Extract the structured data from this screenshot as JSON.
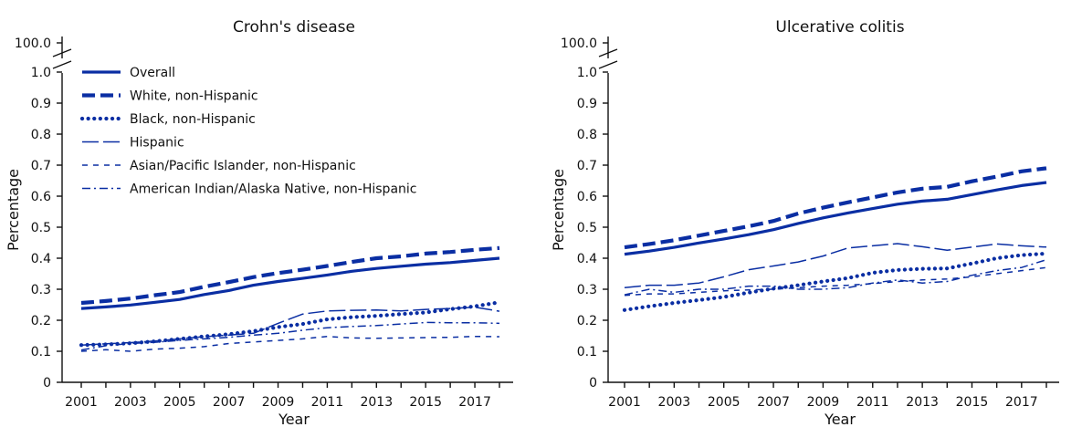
{
  "chart_data": [
    {
      "type": "line",
      "title": "Crohn's disease",
      "xlabel": "Year",
      "ylabel": "Percentage",
      "x": [
        2001,
        2002,
        2003,
        2004,
        2005,
        2006,
        2007,
        2008,
        2009,
        2010,
        2011,
        2012,
        2013,
        2014,
        2015,
        2016,
        2017,
        2018
      ],
      "x_ticks": [
        "2001",
        "2003",
        "2005",
        "2007",
        "2009",
        "2011",
        "2013",
        "2015",
        "2017"
      ],
      "y_ticks": [
        "0",
        "0.1",
        "0.2",
        "0.3",
        "0.4",
        "0.5",
        "0.6",
        "0.7",
        "0.8",
        "0.9",
        "1.0"
      ],
      "y_break_label": "100.0",
      "ylim": [
        0,
        1.0
      ],
      "series": [
        {
          "name": "Overall",
          "values": [
            0.238,
            0.243,
            0.249,
            0.258,
            0.267,
            0.283,
            0.296,
            0.313,
            0.325,
            0.335,
            0.346,
            0.358,
            0.367,
            0.374,
            0.381,
            0.386,
            0.393,
            0.4
          ]
        },
        {
          "name": "White, non-Hispanic",
          "values": [
            0.256,
            0.262,
            0.27,
            0.281,
            0.291,
            0.308,
            0.323,
            0.339,
            0.352,
            0.363,
            0.375,
            0.388,
            0.4,
            0.406,
            0.415,
            0.42,
            0.427,
            0.433
          ]
        },
        {
          "name": "Black, non-Hispanic",
          "values": [
            0.12,
            0.122,
            0.126,
            0.132,
            0.14,
            0.148,
            0.155,
            0.165,
            0.178,
            0.188,
            0.203,
            0.21,
            0.214,
            0.22,
            0.225,
            0.236,
            0.245,
            0.258
          ]
        },
        {
          "name": "Hispanic",
          "values": [
            0.12,
            0.124,
            0.128,
            0.133,
            0.14,
            0.147,
            0.152,
            0.158,
            0.19,
            0.22,
            0.23,
            0.232,
            0.233,
            0.23,
            0.235,
            0.238,
            0.242,
            0.229
          ]
        },
        {
          "name": "Asian/Pacific Islander, non-Hispanic",
          "values": [
            0.1,
            0.105,
            0.1,
            0.107,
            0.11,
            0.115,
            0.125,
            0.13,
            0.135,
            0.14,
            0.148,
            0.143,
            0.142,
            0.143,
            0.144,
            0.145,
            0.148,
            0.147
          ]
        },
        {
          "name": "American Indian/Alaska Native, non-Hispanic",
          "values": [
            0.104,
            0.118,
            0.125,
            0.129,
            0.135,
            0.14,
            0.145,
            0.152,
            0.158,
            0.168,
            0.176,
            0.18,
            0.183,
            0.188,
            0.193,
            0.192,
            0.192,
            0.19
          ]
        }
      ]
    },
    {
      "type": "line",
      "title": "Ulcerative colitis",
      "xlabel": "Year",
      "ylabel": "Percentage",
      "x": [
        2001,
        2002,
        2003,
        2004,
        2005,
        2006,
        2007,
        2008,
        2009,
        2010,
        2011,
        2012,
        2013,
        2014,
        2015,
        2016,
        2017,
        2018
      ],
      "x_ticks": [
        "2001",
        "2003",
        "2005",
        "2007",
        "2009",
        "2011",
        "2013",
        "2015",
        "2017"
      ],
      "y_ticks": [
        "0",
        "0.1",
        "0.2",
        "0.3",
        "0.4",
        "0.5",
        "0.6",
        "0.7",
        "0.8",
        "0.9",
        "1.0"
      ],
      "y_break_label": "100.0",
      "ylim": [
        0,
        1.0
      ],
      "series": [
        {
          "name": "Overall",
          "values": [
            0.413,
            0.423,
            0.435,
            0.449,
            0.462,
            0.476,
            0.492,
            0.512,
            0.53,
            0.546,
            0.56,
            0.574,
            0.584,
            0.59,
            0.605,
            0.62,
            0.634,
            0.644
          ]
        },
        {
          "name": "White, non-Hispanic",
          "values": [
            0.435,
            0.446,
            0.458,
            0.473,
            0.488,
            0.503,
            0.52,
            0.544,
            0.563,
            0.58,
            0.596,
            0.612,
            0.624,
            0.63,
            0.648,
            0.663,
            0.68,
            0.69
          ]
        },
        {
          "name": "Black, non-Hispanic",
          "values": [
            0.233,
            0.245,
            0.256,
            0.265,
            0.275,
            0.289,
            0.302,
            0.313,
            0.325,
            0.336,
            0.353,
            0.362,
            0.366,
            0.367,
            0.383,
            0.4,
            0.41,
            0.415
          ]
        },
        {
          "name": "Hispanic",
          "values": [
            0.305,
            0.313,
            0.313,
            0.32,
            0.34,
            0.363,
            0.375,
            0.388,
            0.407,
            0.433,
            0.44,
            0.447,
            0.437,
            0.426,
            0.436,
            0.446,
            0.44,
            0.436
          ]
        },
        {
          "name": "Asian/Pacific Islander, non-Hispanic",
          "values": [
            0.28,
            0.285,
            0.285,
            0.29,
            0.295,
            0.298,
            0.3,
            0.305,
            0.31,
            0.313,
            0.318,
            0.325,
            0.33,
            0.333,
            0.34,
            0.35,
            0.36,
            0.37
          ]
        },
        {
          "name": "American Indian/Alaska Native, non-Hispanic",
          "values": [
            0.282,
            0.3,
            0.29,
            0.3,
            0.3,
            0.31,
            0.31,
            0.3,
            0.3,
            0.305,
            0.32,
            0.33,
            0.32,
            0.325,
            0.345,
            0.36,
            0.37,
            0.395
          ]
        }
      ]
    }
  ],
  "colors": {
    "line": "#0a2ea3",
    "axis": "#111111"
  },
  "legend": {
    "placement": "top-left of left panel",
    "entries": [
      "Overall",
      "White, non-Hispanic",
      "Black, non-Hispanic",
      "Hispanic",
      "Asian/Pacific Islander, non-Hispanic",
      "American Indian/Alaska Native, non-Hispanic"
    ]
  }
}
